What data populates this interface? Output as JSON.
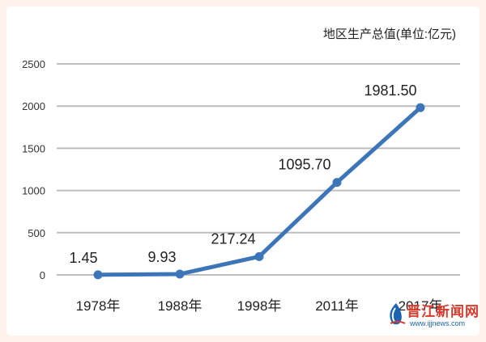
{
  "chart_data": {
    "type": "line",
    "unit_label": "地区生产总值(单位:亿元)",
    "categories": [
      "1978年",
      "1988年",
      "1998年",
      "2011年",
      "2017年"
    ],
    "values": [
      1.45,
      9.93,
      217.24,
      1095.7,
      1981.5
    ],
    "value_labels": [
      "1.45",
      "9.93",
      "217.24",
      "1095.70",
      "1981.50"
    ],
    "yticks": [
      "0",
      "500",
      "1000",
      "1500",
      "2000",
      "2500"
    ],
    "ylim": [
      0,
      2500
    ],
    "grid": true,
    "legend": "none"
  },
  "colors": {
    "line": "#3d76b8",
    "grid": "#bdbdbd",
    "background": "#fdf3ec"
  },
  "watermark": {
    "name": "晋江新闻网",
    "url": "www.ijjnews.com"
  }
}
